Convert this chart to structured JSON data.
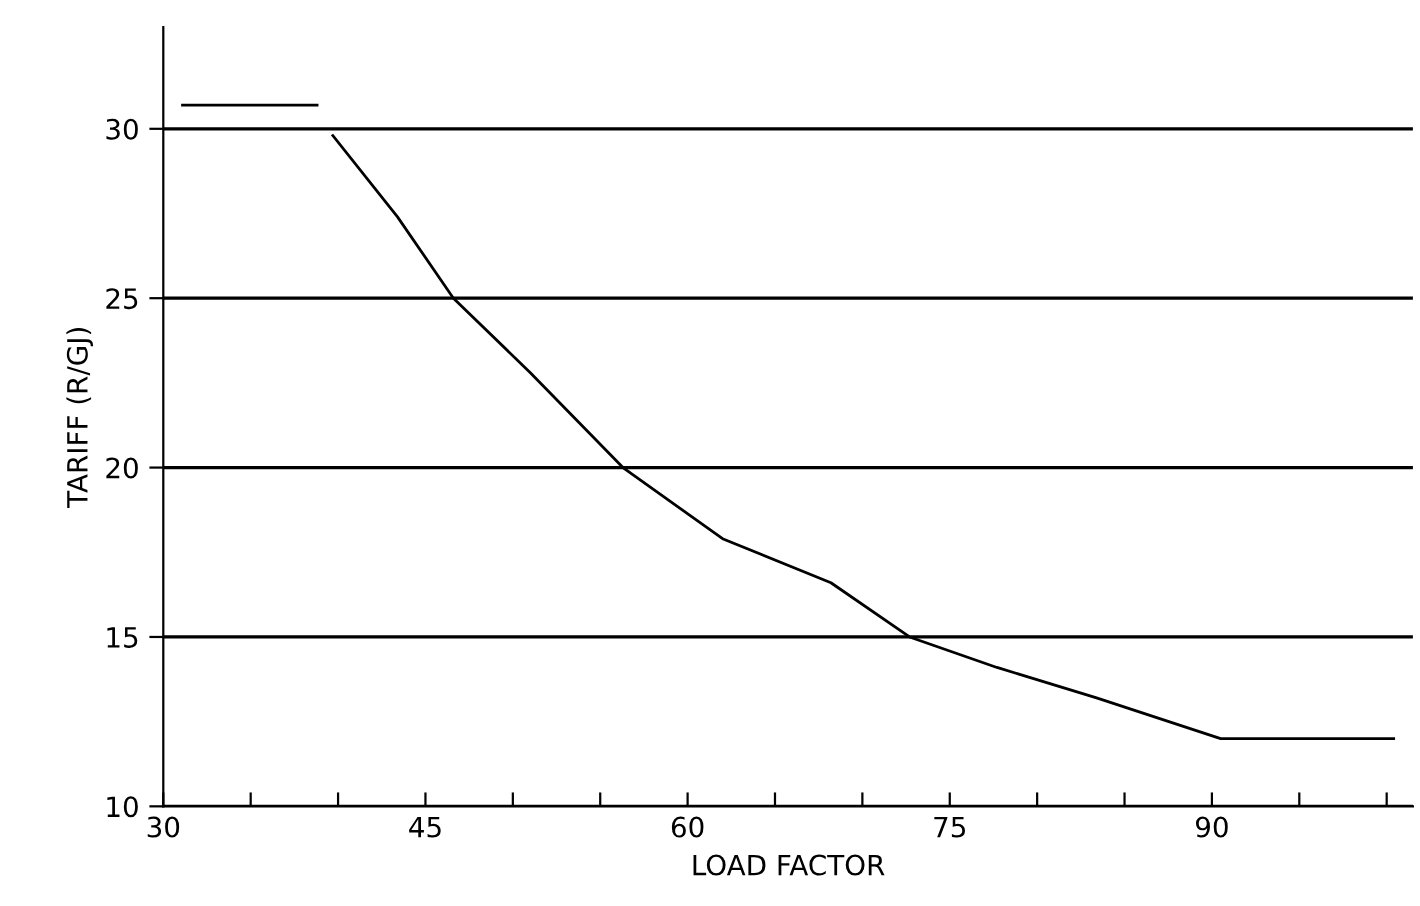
{
  "chart_data": {
    "type": "line",
    "xlabel": "LOAD FACTOR",
    "ylabel": "TARIFF (R/GJ)",
    "xlim": [
      30,
      101.5
    ],
    "ylim": [
      10,
      33
    ],
    "xticks": [
      30,
      {
        "value": 35,
        "label": null
      },
      {
        "value": 40,
        "label": null
      },
      45,
      {
        "value": 50,
        "label": null
      },
      {
        "value": 55,
        "label": null
      },
      60,
      {
        "value": 65,
        "label": null
      },
      {
        "value": 70,
        "label": null
      },
      75,
      {
        "value": 80,
        "label": null
      },
      {
        "value": 85,
        "label": null
      },
      90,
      {
        "value": 95,
        "label": null
      },
      {
        "value": 100,
        "label": null
      }
    ],
    "yticks": [
      10,
      15,
      20,
      25,
      30
    ],
    "grid": "y",
    "legend": false,
    "marker": "none",
    "line_style": "solid",
    "series": [
      {
        "color": "#000000",
        "x": [
          31.1,
          38.8
        ],
        "values": [
          30.7,
          30.7
        ]
      },
      {
        "color": "#000000",
        "x": [
          39.7,
          43.4,
          46.6,
          51.0,
          56.3,
          62.0,
          68.2,
          72.7,
          77.7,
          83.4,
          90.5,
          100.4
        ],
        "values": [
          29.8,
          27.4,
          25.0,
          22.8,
          20.0,
          17.9,
          16.6,
          15.0,
          14.1,
          13.2,
          12.0,
          12.0
        ]
      }
    ]
  }
}
